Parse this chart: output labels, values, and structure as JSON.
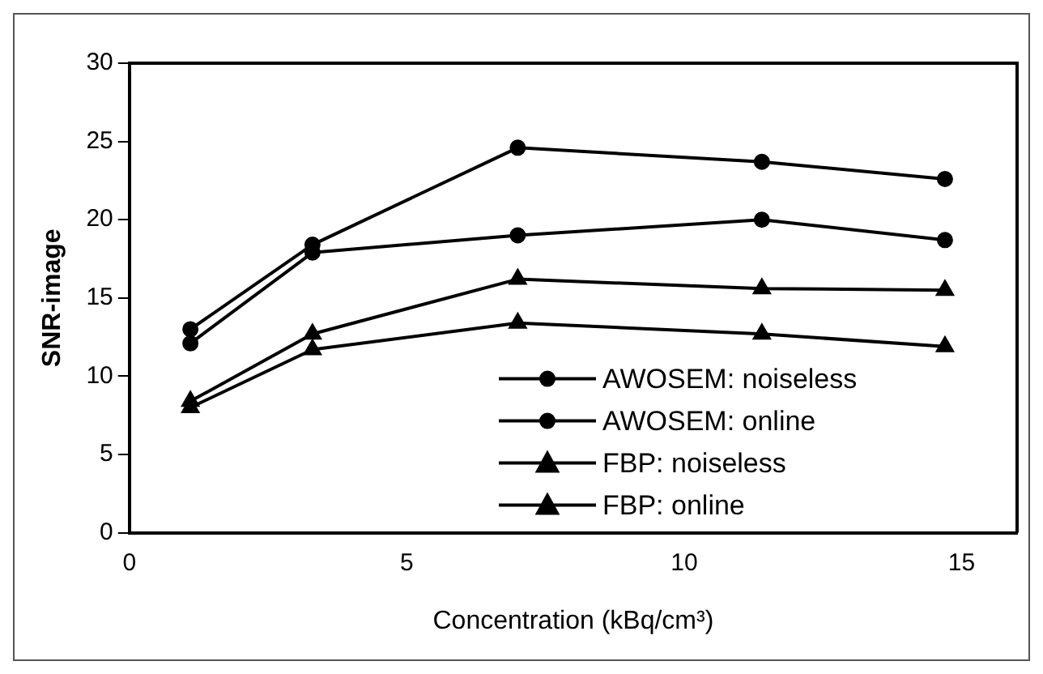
{
  "chart_data": {
    "type": "line",
    "xlabel": "Concentration (kBq/cm³)",
    "ylabel": "SNR-image",
    "xlim": [
      0,
      16
    ],
    "xticks": [
      0,
      5,
      10,
      15
    ],
    "ylim": [
      0,
      30
    ],
    "yticks": [
      0,
      5,
      10,
      15,
      20,
      25,
      30
    ],
    "grid": false,
    "legend": "bottom right",
    "line_style": "solid",
    "series": [
      {
        "name": "AWOSEM: noiseless",
        "color": "#000000",
        "marker": "circle",
        "x": [
          1.1,
          3.3,
          7.0,
          11.4,
          14.7
        ],
        "values": [
          13.0,
          18.4,
          24.6,
          23.7,
          22.6
        ]
      },
      {
        "name": "AWOSEM: online",
        "color": "#000000",
        "marker": "circle",
        "x": [
          1.1,
          3.3,
          7.0,
          11.4,
          14.7
        ],
        "values": [
          12.1,
          17.9,
          19.0,
          20.0,
          18.7
        ]
      },
      {
        "name": "FBP: noiseless",
        "color": "#000000",
        "marker": "triangle",
        "x": [
          1.1,
          3.3,
          7.0,
          11.4,
          14.7
        ],
        "values": [
          8.4,
          12.7,
          16.2,
          15.6,
          15.5
        ]
      },
      {
        "name": "FBP: online",
        "color": "#000000",
        "marker": "triangle",
        "x": [
          1.1,
          3.3,
          7.0,
          11.4,
          14.7
        ],
        "values": [
          8.0,
          11.7,
          13.4,
          12.7,
          11.9
        ]
      }
    ]
  }
}
